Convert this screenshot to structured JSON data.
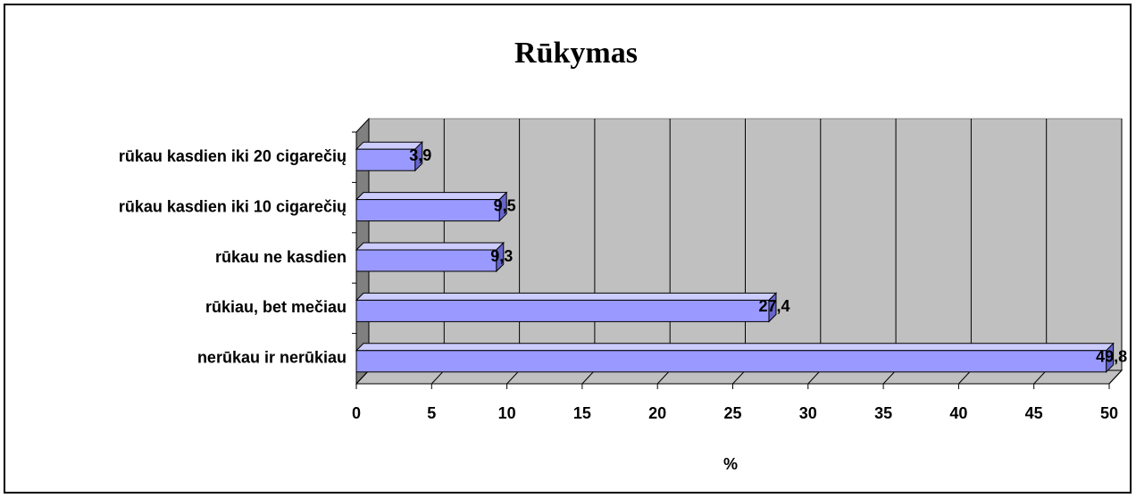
{
  "chart_data": {
    "type": "bar",
    "orientation": "horizontal",
    "title": "Rūkymas",
    "x_label": "%",
    "categories": [
      "rūkau kasdien iki 20 cigarečių",
      "rūkau kasdien iki 10 cigarečių",
      "rūkau ne kasdien",
      "rūkiau, bet mečiau",
      "nerūkau ir nerūkiau"
    ],
    "values": [
      3.9,
      9.5,
      9.3,
      27.4,
      49.8
    ],
    "value_labels": [
      "3,9",
      "9,5",
      "9,3",
      "27,4",
      "49,8"
    ],
    "color": "#9999ff",
    "xlim": [
      0,
      50
    ],
    "xticks": [
      0,
      5,
      10,
      15,
      20,
      25,
      30,
      35,
      40,
      45,
      50
    ],
    "grid": true
  }
}
